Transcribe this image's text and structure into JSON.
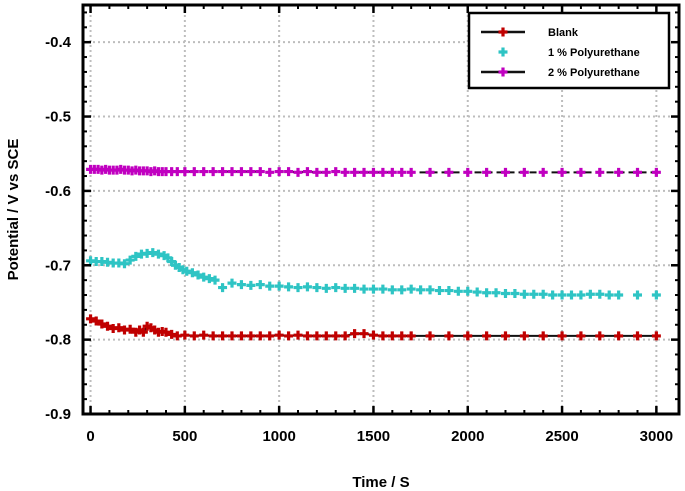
{
  "chart_data": {
    "type": "scatter",
    "xlabel": "Time / S",
    "ylabel": "Potential / V vs SCE",
    "xlim": [
      -40,
      3120
    ],
    "ylim": [
      -0.9,
      -0.35
    ],
    "xticks": [
      0,
      500,
      1000,
      1500,
      2000,
      2500,
      3000
    ],
    "xtick_labels": [
      "0",
      "500",
      "1000",
      "1500",
      "2000",
      "2500",
      "3000"
    ],
    "yticks": [
      -0.9,
      -0.8,
      -0.7,
      -0.6,
      -0.5,
      -0.4
    ],
    "ytick_labels": [
      "-0.9",
      "-0.8",
      "-0.7",
      "-0.6",
      "-0.5",
      "-0.4"
    ],
    "grid": true,
    "legend_position": "top-right",
    "series": [
      {
        "name": "Blank",
        "color": "#c00000",
        "line": true,
        "x": [
          0,
          30,
          60,
          90,
          120,
          150,
          180,
          210,
          240,
          260,
          280,
          300,
          320,
          340,
          360,
          380,
          400,
          430,
          460,
          500,
          550,
          600,
          650,
          700,
          750,
          800,
          850,
          900,
          950,
          1000,
          1050,
          1100,
          1150,
          1200,
          1250,
          1300,
          1350,
          1400,
          1450,
          1500,
          1550,
          1600,
          1650,
          1700,
          1800,
          1900,
          2000,
          2100,
          2200,
          2300,
          2400,
          2500,
          2600,
          2700,
          2800,
          2900,
          3000
        ],
        "y": [
          -0.772,
          -0.775,
          -0.779,
          -0.782,
          -0.785,
          -0.784,
          -0.787,
          -0.786,
          -0.79,
          -0.787,
          -0.79,
          -0.782,
          -0.784,
          -0.787,
          -0.79,
          -0.789,
          -0.79,
          -0.793,
          -0.795,
          -0.794,
          -0.795,
          -0.794,
          -0.795,
          -0.795,
          -0.795,
          -0.795,
          -0.795,
          -0.795,
          -0.795,
          -0.794,
          -0.795,
          -0.794,
          -0.795,
          -0.795,
          -0.795,
          -0.795,
          -0.795,
          -0.792,
          -0.792,
          -0.794,
          -0.795,
          -0.795,
          -0.795,
          -0.795,
          -0.795,
          -0.795,
          -0.795,
          -0.795,
          -0.795,
          -0.795,
          -0.795,
          -0.795,
          -0.795,
          -0.795,
          -0.795,
          -0.795,
          -0.795
        ]
      },
      {
        "name": "1 % Polyurethane",
        "color": "#2ec4c4",
        "line": false,
        "x": [
          0,
          30,
          60,
          90,
          120,
          150,
          180,
          210,
          240,
          270,
          300,
          330,
          360,
          390,
          410,
          430,
          450,
          470,
          490,
          510,
          540,
          570,
          600,
          630,
          660,
          700,
          750,
          800,
          850,
          900,
          950,
          1000,
          1050,
          1100,
          1150,
          1200,
          1250,
          1300,
          1350,
          1400,
          1450,
          1500,
          1550,
          1600,
          1650,
          1700,
          1750,
          1800,
          1850,
          1900,
          1950,
          2000,
          2050,
          2100,
          2150,
          2200,
          2250,
          2300,
          2350,
          2400,
          2450,
          2500,
          2550,
          2600,
          2650,
          2700,
          2750,
          2800,
          2900,
          3000
        ],
        "y": [
          -0.694,
          -0.695,
          -0.695,
          -0.696,
          -0.697,
          -0.697,
          -0.698,
          -0.693,
          -0.688,
          -0.685,
          -0.684,
          -0.683,
          -0.685,
          -0.687,
          -0.69,
          -0.695,
          -0.7,
          -0.703,
          -0.706,
          -0.708,
          -0.71,
          -0.713,
          -0.716,
          -0.718,
          -0.72,
          -0.73,
          -0.724,
          -0.726,
          -0.727,
          -0.726,
          -0.728,
          -0.728,
          -0.729,
          -0.73,
          -0.729,
          -0.73,
          -0.731,
          -0.73,
          -0.731,
          -0.731,
          -0.732,
          -0.732,
          -0.732,
          -0.733,
          -0.733,
          -0.732,
          -0.733,
          -0.733,
          -0.734,
          -0.734,
          -0.735,
          -0.735,
          -0.736,
          -0.737,
          -0.737,
          -0.738,
          -0.738,
          -0.739,
          -0.739,
          -0.739,
          -0.74,
          -0.74,
          -0.74,
          -0.74,
          -0.739,
          -0.739,
          -0.74,
          -0.74,
          -0.74,
          -0.74
        ]
      },
      {
        "name": "2 % Polyurethane",
        "color": "#c000c0",
        "line": true,
        "x": [
          0,
          20,
          40,
          60,
          80,
          100,
          120,
          140,
          160,
          180,
          200,
          220,
          240,
          260,
          280,
          300,
          320,
          340,
          360,
          380,
          400,
          430,
          460,
          500,
          550,
          600,
          650,
          700,
          750,
          800,
          850,
          900,
          950,
          1000,
          1050,
          1100,
          1150,
          1200,
          1250,
          1300,
          1350,
          1400,
          1450,
          1500,
          1550,
          1600,
          1650,
          1700,
          1800,
          1900,
          2000,
          2100,
          2200,
          2300,
          2400,
          2500,
          2600,
          2700,
          2800,
          2900,
          3000
        ],
        "y": [
          -0.571,
          -0.571,
          -0.571,
          -0.572,
          -0.571,
          -0.572,
          -0.572,
          -0.572,
          -0.571,
          -0.572,
          -0.572,
          -0.573,
          -0.572,
          -0.573,
          -0.573,
          -0.573,
          -0.574,
          -0.573,
          -0.574,
          -0.574,
          -0.574,
          -0.574,
          -0.574,
          -0.574,
          -0.574,
          -0.574,
          -0.574,
          -0.574,
          -0.574,
          -0.574,
          -0.574,
          -0.574,
          -0.575,
          -0.574,
          -0.574,
          -0.575,
          -0.574,
          -0.575,
          -0.575,
          -0.574,
          -0.575,
          -0.575,
          -0.575,
          -0.575,
          -0.575,
          -0.575,
          -0.575,
          -0.575,
          -0.575,
          -0.575,
          -0.575,
          -0.575,
          -0.575,
          -0.575,
          -0.575,
          -0.575,
          -0.575,
          -0.575,
          -0.575,
          -0.575,
          -0.575
        ]
      }
    ]
  }
}
